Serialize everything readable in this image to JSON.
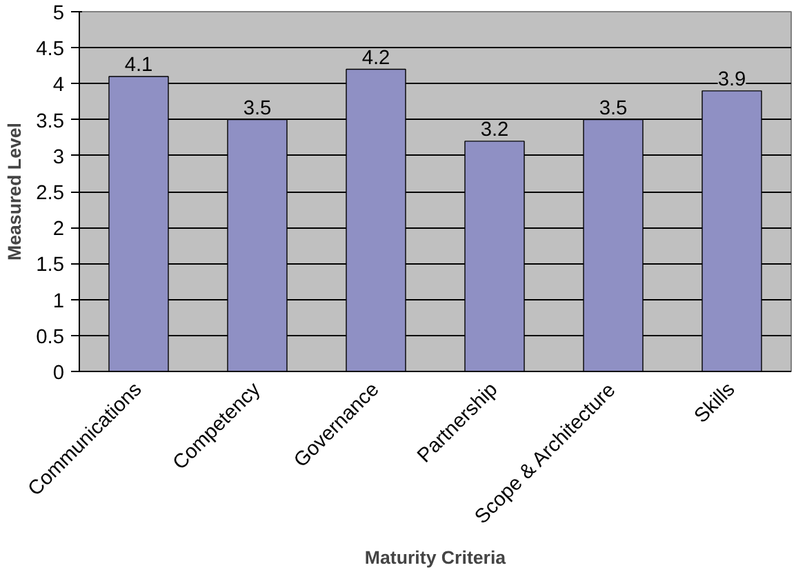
{
  "chart_data": {
    "type": "bar",
    "xlabel": "Maturity Criteria",
    "ylabel": "Measured Level",
    "categories": [
      "Communications",
      "Competency",
      "Governance",
      "Partnership",
      "Scope & Architecture",
      "Skills"
    ],
    "values": [
      4.1,
      3.5,
      4.2,
      3.2,
      3.5,
      3.9
    ],
    "color": "#8f90c4",
    "ylim": [
      0,
      5
    ],
    "yticks": [
      0,
      0.5,
      1,
      1.5,
      2,
      2.5,
      3,
      3.5,
      4,
      4.5,
      5
    ],
    "grid": "y",
    "data_labels": true
  }
}
